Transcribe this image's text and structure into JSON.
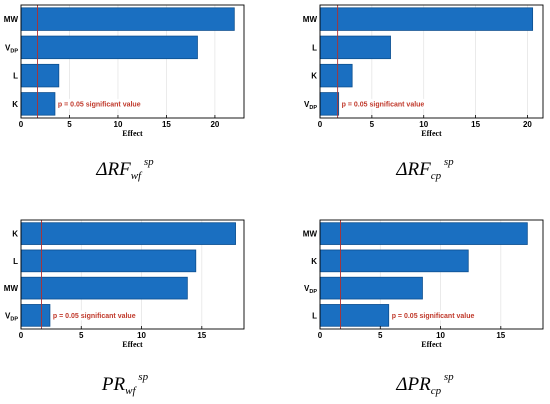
{
  "colors": {
    "bar": "#1a6fc1",
    "bar_edge": "#0d4f8f",
    "sig_line": "#b03030",
    "sig_text": "#c0392b"
  },
  "chart_data": [
    {
      "type": "bar",
      "orientation": "horizontal",
      "categories": [
        {
          "main": "MW",
          "sub": ""
        },
        {
          "main": "V",
          "sub": "DP"
        },
        {
          "main": "L",
          "sub": ""
        },
        {
          "main": "K",
          "sub": ""
        }
      ],
      "values": [
        22.0,
        18.2,
        3.9,
        3.5
      ],
      "xlim": [
        0,
        23
      ],
      "xticks": [
        0,
        5,
        10,
        15,
        20
      ],
      "xlabel": "Effect",
      "significance": {
        "value": 1.7,
        "label": "p = 0.05 significant value"
      },
      "caption": {
        "prefix": "Δ",
        "base": "RF",
        "sub": "wf",
        "sup": "sp"
      }
    },
    {
      "type": "bar",
      "orientation": "horizontal",
      "categories": [
        {
          "main": "MW",
          "sub": ""
        },
        {
          "main": "L",
          "sub": ""
        },
        {
          "main": "K",
          "sub": ""
        },
        {
          "main": "V",
          "sub": "DP"
        }
      ],
      "values": [
        20.5,
        6.8,
        3.1,
        1.8
      ],
      "xlim": [
        0,
        21.5
      ],
      "xticks": [
        0,
        5,
        10,
        15,
        20
      ],
      "xlabel": "Effect",
      "significance": {
        "value": 1.7,
        "label": "p = 0.05 significant value"
      },
      "caption": {
        "prefix": "Δ",
        "base": "RF",
        "sub": "cp",
        "sup": "sp"
      }
    },
    {
      "type": "bar",
      "orientation": "horizontal",
      "categories": [
        {
          "main": "K",
          "sub": ""
        },
        {
          "main": "L",
          "sub": ""
        },
        {
          "main": "MW",
          "sub": ""
        },
        {
          "main": "V",
          "sub": "DP"
        }
      ],
      "values": [
        17.8,
        14.5,
        13.8,
        2.4
      ],
      "xlim": [
        0,
        18.5
      ],
      "xticks": [
        0,
        5,
        10,
        15
      ],
      "xlabel": "Effect",
      "significance": {
        "value": 1.7,
        "label": "p = 0.05 significant value"
      },
      "caption": {
        "prefix": "",
        "base": "PR",
        "sub": "wf",
        "sup": "sp"
      }
    },
    {
      "type": "bar",
      "orientation": "horizontal",
      "categories": [
        {
          "main": "MW",
          "sub": ""
        },
        {
          "main": "K",
          "sub": ""
        },
        {
          "main": "V",
          "sub": "DP"
        },
        {
          "main": "L",
          "sub": ""
        }
      ],
      "values": [
        17.2,
        12.3,
        8.5,
        5.7
      ],
      "xlim": [
        0,
        18.5
      ],
      "xticks": [
        0,
        5,
        10,
        15
      ],
      "xlabel": "Effect",
      "significance": {
        "value": 1.7,
        "label": "p = 0.05 significant value"
      },
      "caption": {
        "prefix": "Δ",
        "base": "PR",
        "sub": "cp",
        "sup": "sp"
      }
    }
  ]
}
